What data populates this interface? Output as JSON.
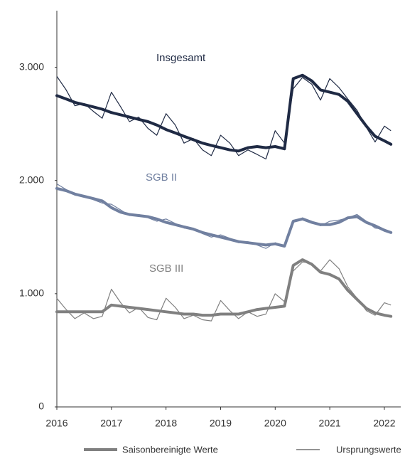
{
  "chart_data": {
    "type": "line",
    "legend": [
      "Saisonbereinigte Werte",
      "Ursprungswerte"
    ],
    "legend_colors": [
      "#808080",
      "#555555"
    ],
    "x": [
      2016,
      2016.17,
      2016.33,
      2016.5,
      2016.67,
      2016.83,
      2017,
      2017.17,
      2017.33,
      2017.5,
      2017.67,
      2017.83,
      2018,
      2018.17,
      2018.33,
      2018.5,
      2018.67,
      2018.83,
      2019,
      2019.17,
      2019.33,
      2019.5,
      2019.67,
      2019.83,
      2020,
      2020.17,
      2020.33,
      2020.5,
      2020.67,
      2020.83,
      2021,
      2021.17,
      2021.33,
      2021.5,
      2021.67,
      2021.83,
      2022,
      2022.12
    ],
    "series": [
      {
        "name": "Insgesamt",
        "color": "#1f2a44",
        "seasonal": [
          2750,
          2720,
          2690,
          2670,
          2650,
          2630,
          2600,
          2580,
          2560,
          2540,
          2520,
          2490,
          2450,
          2420,
          2390,
          2360,
          2330,
          2310,
          2290,
          2270,
          2260,
          2290,
          2300,
          2290,
          2300,
          2280,
          2900,
          2930,
          2880,
          2800,
          2780,
          2760,
          2700,
          2590,
          2480,
          2390,
          2350,
          2320
        ],
        "original": [
          2920,
          2800,
          2660,
          2680,
          2610,
          2550,
          2780,
          2650,
          2520,
          2560,
          2460,
          2400,
          2590,
          2490,
          2330,
          2370,
          2270,
          2220,
          2400,
          2330,
          2220,
          2270,
          2230,
          2190,
          2440,
          2330,
          2810,
          2910,
          2850,
          2710,
          2900,
          2820,
          2720,
          2620,
          2470,
          2340,
          2480,
          2440
        ]
      },
      {
        "name": "SGB II",
        "color": "#7180a0",
        "seasonal": [
          1930,
          1910,
          1880,
          1860,
          1840,
          1820,
          1760,
          1720,
          1700,
          1690,
          1680,
          1660,
          1630,
          1610,
          1590,
          1570,
          1540,
          1520,
          1500,
          1480,
          1460,
          1450,
          1440,
          1430,
          1440,
          1420,
          1640,
          1660,
          1630,
          1610,
          1610,
          1630,
          1670,
          1680,
          1630,
          1600,
          1560,
          1540
        ],
        "original": [
          1970,
          1920,
          1870,
          1860,
          1830,
          1800,
          1790,
          1740,
          1690,
          1700,
          1670,
          1640,
          1660,
          1620,
          1580,
          1580,
          1530,
          1500,
          1520,
          1490,
          1450,
          1460,
          1430,
          1400,
          1450,
          1420,
          1630,
          1670,
          1640,
          1600,
          1640,
          1650,
          1670,
          1700,
          1640,
          1580,
          1570,
          1540
        ]
      },
      {
        "name": "SGB III",
        "color": "#808080",
        "seasonal": [
          840,
          840,
          840,
          840,
          840,
          840,
          900,
          890,
          880,
          870,
          860,
          850,
          840,
          830,
          820,
          820,
          810,
          810,
          820,
          820,
          820,
          840,
          860,
          870,
          880,
          890,
          1250,
          1300,
          1260,
          1190,
          1170,
          1130,
          1030,
          950,
          870,
          830,
          810,
          800
        ],
        "original": [
          960,
          860,
          780,
          830,
          780,
          800,
          1040,
          920,
          830,
          880,
          790,
          770,
          960,
          880,
          780,
          810,
          770,
          760,
          940,
          850,
          780,
          840,
          800,
          820,
          1000,
          930,
          1200,
          1280,
          1270,
          1200,
          1300,
          1220,
          1060,
          960,
          850,
          810,
          920,
          900
        ]
      }
    ],
    "xlim": [
      2016,
      2022.3
    ],
    "xticks": [
      2016,
      2017,
      2018,
      2019,
      2020,
      2021,
      2022
    ],
    "ylim": [
      0,
      3500
    ],
    "yticks": [
      0,
      {
        "value": 1000,
        "label": "1.000"
      },
      {
        "value": 2000,
        "label": "2.000"
      },
      {
        "value": 3000,
        "label": "3.000"
      }
    ]
  }
}
